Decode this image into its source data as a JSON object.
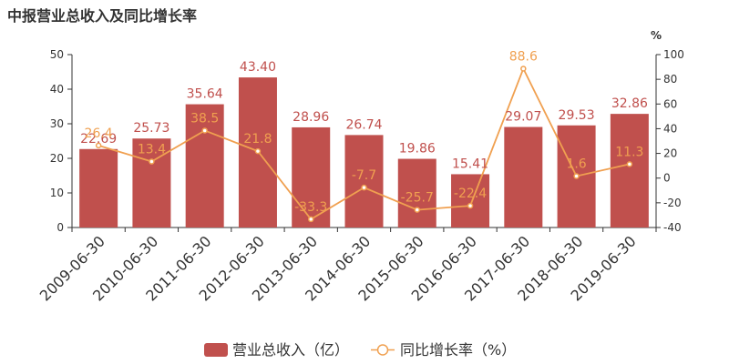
{
  "chart_data": {
    "type": "bar",
    "title": "中报营业总收入及同比增长率",
    "categories": [
      "2009-06-30",
      "2010-06-30",
      "2011-06-30",
      "2012-06-30",
      "2013-06-30",
      "2014-06-30",
      "2015-06-30",
      "2016-06-30",
      "2017-06-30",
      "2018-06-30",
      "2019-06-30"
    ],
    "series": [
      {
        "name": "营业总收入（亿）",
        "type": "bar",
        "axis": "left",
        "values": [
          22.69,
          25.73,
          35.64,
          43.4,
          28.96,
          26.74,
          19.86,
          15.41,
          29.07,
          29.53,
          32.86
        ],
        "labels": [
          "22.69",
          "25.73",
          "35.64",
          "43.40",
          "28.96",
          "26.74",
          "19.86",
          "15.41",
          "29.07",
          "29.53",
          "32.86"
        ],
        "color": "#c0504d"
      },
      {
        "name": "同比增长率（%）",
        "type": "line",
        "axis": "right",
        "values": [
          26.4,
          13.4,
          38.5,
          21.8,
          -33.3,
          -7.7,
          -25.7,
          -22.4,
          88.6,
          1.6,
          11.3
        ],
        "labels": [
          "26.4",
          "13.4",
          "38.5",
          "21.8",
          "-33.3",
          "-7.7",
          "-25.7",
          "-22.4",
          "88.6",
          "1.6",
          "11.3"
        ],
        "color": "#f0a050"
      }
    ],
    "y_left": {
      "min": 0,
      "max": 50,
      "ticks": [
        0,
        10,
        20,
        30,
        40,
        50
      ]
    },
    "y_right": {
      "min": -40,
      "max": 100,
      "ticks": [
        -40,
        -20,
        0,
        20,
        40,
        60,
        80,
        100
      ],
      "unit": "%"
    },
    "legend_position": "bottom-center",
    "grid": false
  }
}
